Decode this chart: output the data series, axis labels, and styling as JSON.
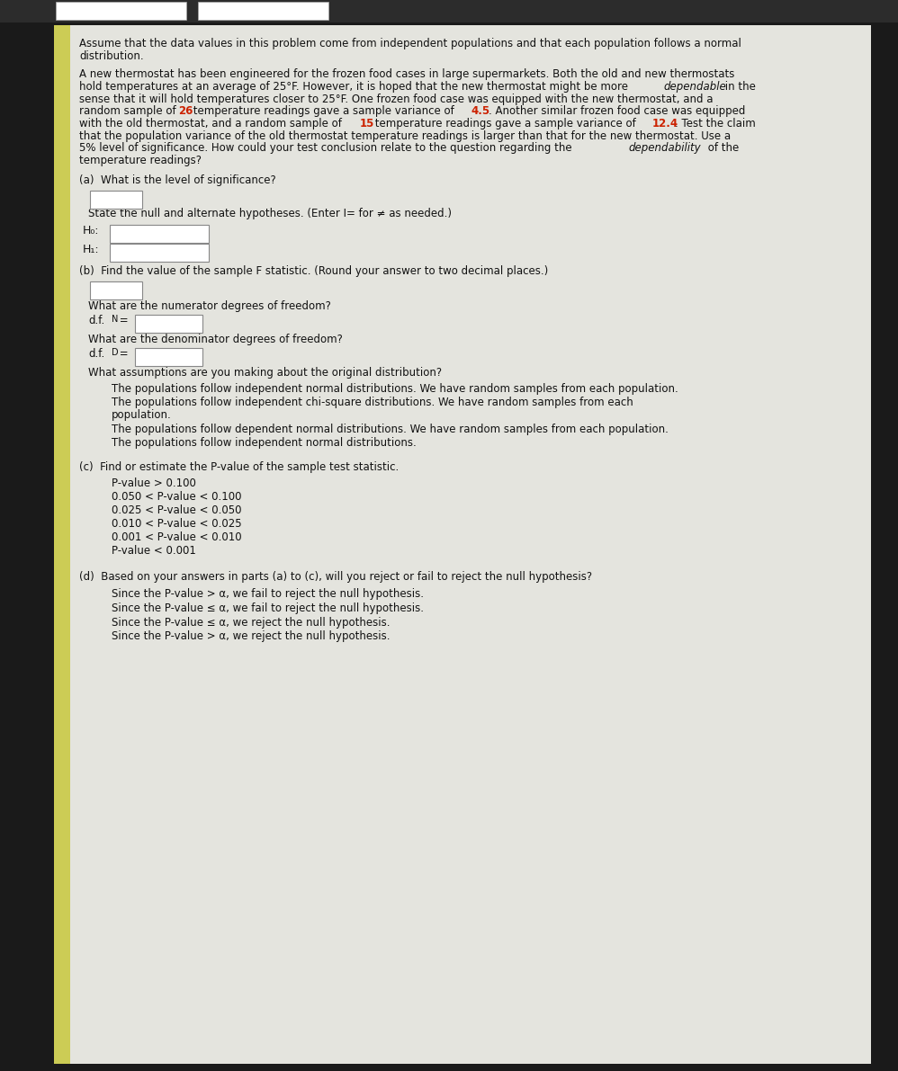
{
  "bg_color": "#1a1a1a",
  "paper_color": "#e4e4de",
  "stripe_color": "#cccc55",
  "fs": 8.5,
  "lh": 0.0115,
  "title_line1": "Assume that the data values in this problem come from independent populations and that each population follows a normal",
  "title_line2": "distribution.",
  "prob_lines": [
    {
      "parts": [
        [
          "A new thermostat has been engineered for the frozen food cases in large supermarkets. Both the old and new thermostats",
          "n"
        ]
      ]
    },
    {
      "parts": [
        [
          "hold temperatures at an average of 25°F. However, it is hoped that the new thermostat might be more ",
          "n"
        ],
        [
          "dependable",
          "i"
        ],
        [
          " in the",
          "n"
        ]
      ]
    },
    {
      "parts": [
        [
          "sense that it will hold temperatures closer to 25°F. One frozen food case was equipped with the new thermostat, and a",
          "n"
        ]
      ]
    },
    {
      "parts": [
        [
          "random sample of ",
          "n"
        ],
        [
          "26",
          "r"
        ],
        [
          " temperature readings gave a sample variance of ",
          "n"
        ],
        [
          "4.5",
          "r"
        ],
        [
          ". Another similar frozen food case was equipped",
          "n"
        ]
      ]
    },
    {
      "parts": [
        [
          "with the old thermostat, and a random sample of ",
          "n"
        ],
        [
          "15",
          "r"
        ],
        [
          " temperature readings gave a sample variance of ",
          "n"
        ],
        [
          "12.4",
          "r"
        ],
        [
          ". Test the claim",
          "n"
        ]
      ]
    },
    {
      "parts": [
        [
          "that the population variance of the old thermostat temperature readings is larger than that for the new thermostat. Use a",
          "n"
        ]
      ]
    },
    {
      "parts": [
        [
          "5% level of significance. How could your test conclusion relate to the question regarding the ",
          "n"
        ],
        [
          "dependability",
          "i"
        ],
        [
          " of the",
          "n"
        ]
      ]
    },
    {
      "parts": [
        [
          "temperature readings?",
          "n"
        ]
      ]
    }
  ],
  "assumption_options": [
    "The populations follow independent normal distributions. We have random samples from each population.",
    "The populations follow independent chi-square distributions. We have random samples from each\npopulation.",
    "The populations follow dependent normal distributions. We have random samples from each population.",
    "The populations follow independent normal distributions."
  ],
  "pvalue_options": [
    "P-value > 0.100",
    "0.050 < P-value < 0.100",
    "0.025 < P-value < 0.050",
    "0.010 < P-value < 0.025",
    "0.001 < P-value < 0.010",
    "P-value < 0.001"
  ],
  "reject_options": [
    "Since the P-value > α, we fail to reject the null hypothesis.",
    "Since the P-value ≤ α, we fail to reject the null hypothesis.",
    "Since the P-value ≤ α, we reject the null hypothesis.",
    "Since the P-value > α, we reject the null hypothesis."
  ]
}
